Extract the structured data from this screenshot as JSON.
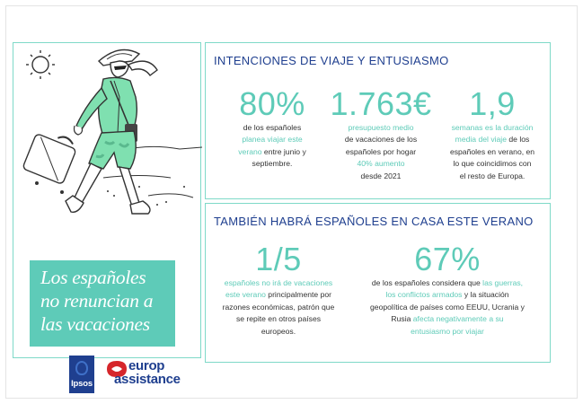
{
  "colors": {
    "accent": "#5ecbb8",
    "navy": "#1f3f8f",
    "border": "#7fd9c8",
    "text": "#333333"
  },
  "headline": "Los españoles no renuncian a las vacaciones",
  "logos": {
    "ipsos": "Ipsos",
    "europ_line1": "europ",
    "europ_line2": "assistance"
  },
  "section1": {
    "title": "INTENCIONES DE VIAJE Y ENTUSIASMO",
    "stats": [
      {
        "value": "80%",
        "t1": "de los españoles",
        "t2": "planea viajar este",
        "t3": "verano",
        "t4": " entre junio y",
        "t5": "septiembre."
      },
      {
        "value": "1.763€",
        "t1": "presupuesto medio",
        "t2": "de vacaciones de los",
        "t3": "españoles por hogar",
        "t4": "40% aumento",
        "t5": "desde 2021"
      },
      {
        "value": "1,9",
        "t1": "semanas es la duración",
        "t2": "media del viaje",
        "t3": " de los",
        "t4": "españoles en verano, en",
        "t5": "lo que coincidimos con",
        "t6": "el resto de Europa."
      }
    ]
  },
  "section2": {
    "title": "TAMBIÉN HABRÁ ESPAÑOLES EN CASA ESTE VERANO",
    "stats": [
      {
        "value": "1/5",
        "t1": "españoles no irá de vacaciones",
        "t2": "este verano",
        "t3": " principalmente por",
        "t4": "razones económicas, patrón que",
        "t5": "se repite en otros países",
        "t6": "europeos."
      },
      {
        "value": "67%",
        "t1": "de los españoles considera que ",
        "t2": "las guerras,",
        "t3": "los conflictos armados",
        "t4": " y la situación",
        "t5": "geopolítica de países como EEUU, Ucrania y",
        "t6": "Rusia ",
        "t7": "afecta negativamente a su",
        "t8": "entusiasmo por viajar"
      }
    ]
  }
}
